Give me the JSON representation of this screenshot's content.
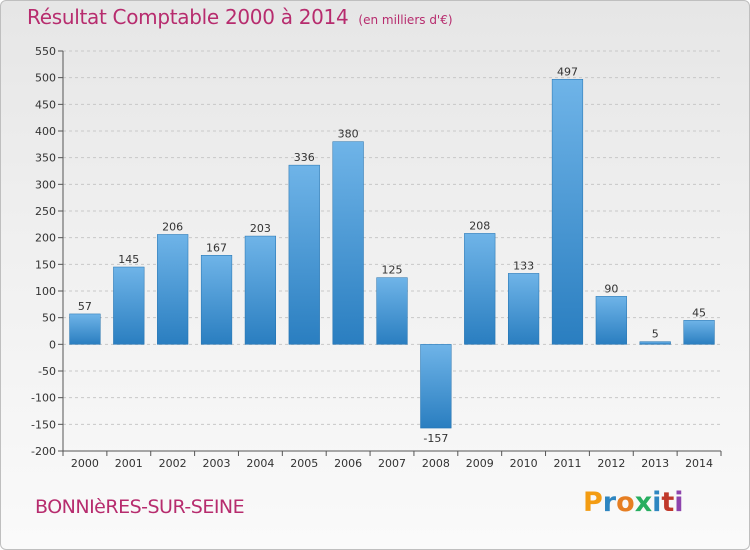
{
  "title": "Résultat Comptable 2000 à 2014",
  "unit": "(en milliers d'€)",
  "commune": "BONNIèRES-SUR-SEINE",
  "brand": "Proxiti",
  "colors": {
    "bar_light": "#6fb4e8",
    "bar_dark": "#2a7ec0",
    "title": "#b72c6e",
    "grid": "#c8c8c8"
  },
  "chart_data": {
    "type": "bar",
    "categories": [
      "2000",
      "2001",
      "2002",
      "2003",
      "2004",
      "2005",
      "2006",
      "2007",
      "2008",
      "2009",
      "2010",
      "2011",
      "2012",
      "2013",
      "2014"
    ],
    "values": [
      57,
      145,
      206,
      167,
      203,
      336,
      380,
      125,
      -157,
      208,
      133,
      497,
      90,
      5,
      45
    ],
    "ylim": [
      -200,
      550
    ],
    "yticks": [
      -200,
      -150,
      -100,
      -50,
      0,
      50,
      100,
      150,
      200,
      250,
      300,
      350,
      400,
      450,
      500,
      550
    ],
    "grid": true,
    "xlabel": "",
    "ylabel": ""
  }
}
